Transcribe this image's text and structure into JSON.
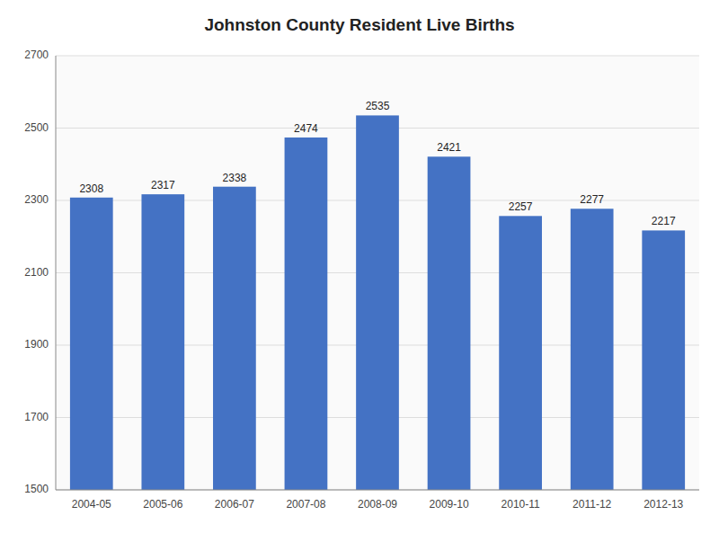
{
  "chart_data": {
    "type": "bar",
    "title": "Johnston County Resident Live Births",
    "categories": [
      "2004-05",
      "2005-06",
      "2006-07",
      "2007-08",
      "2008-09",
      "2009-10",
      "2010-11",
      "2011-12",
      "2012-13"
    ],
    "values": [
      2308,
      2317,
      2338,
      2474,
      2535,
      2421,
      2257,
      2277,
      2217
    ],
    "color": "#4472C4",
    "ylim": [
      1500,
      2700
    ],
    "yticks": [
      1500,
      1700,
      1900,
      2100,
      2300,
      2500,
      2700
    ],
    "grid": true,
    "data_labels": true
  }
}
